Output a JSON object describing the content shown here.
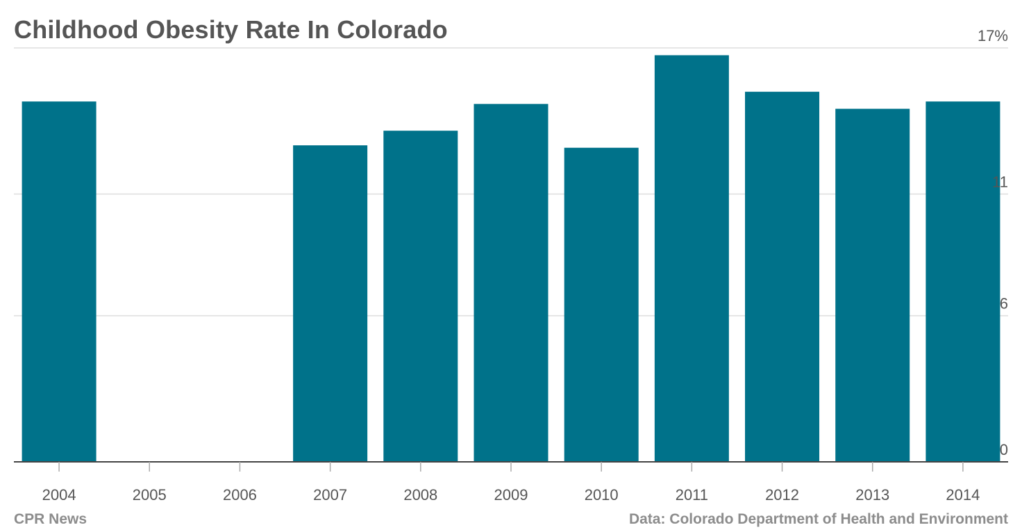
{
  "chart_data": {
    "type": "bar",
    "title": "Childhood Obesity Rate In Colorado",
    "categories": [
      "2004",
      "2005",
      "2006",
      "2007",
      "2008",
      "2009",
      "2010",
      "2011",
      "2012",
      "2013",
      "2014"
    ],
    "values": [
      14.8,
      null,
      null,
      13.0,
      13.6,
      14.7,
      12.9,
      16.7,
      15.2,
      14.5,
      14.8
    ],
    "ylim": [
      0,
      17
    ],
    "yticks": [
      0,
      6,
      11,
      17
    ],
    "ytick_labels": [
      "0",
      "6",
      "11",
      "17%"
    ],
    "xlabel": "",
    "ylabel": "",
    "grid": true,
    "bar_color": "#00728a"
  },
  "source_left": "CPR News",
  "source_right": "Data: Colorado Department of Health and Environment"
}
